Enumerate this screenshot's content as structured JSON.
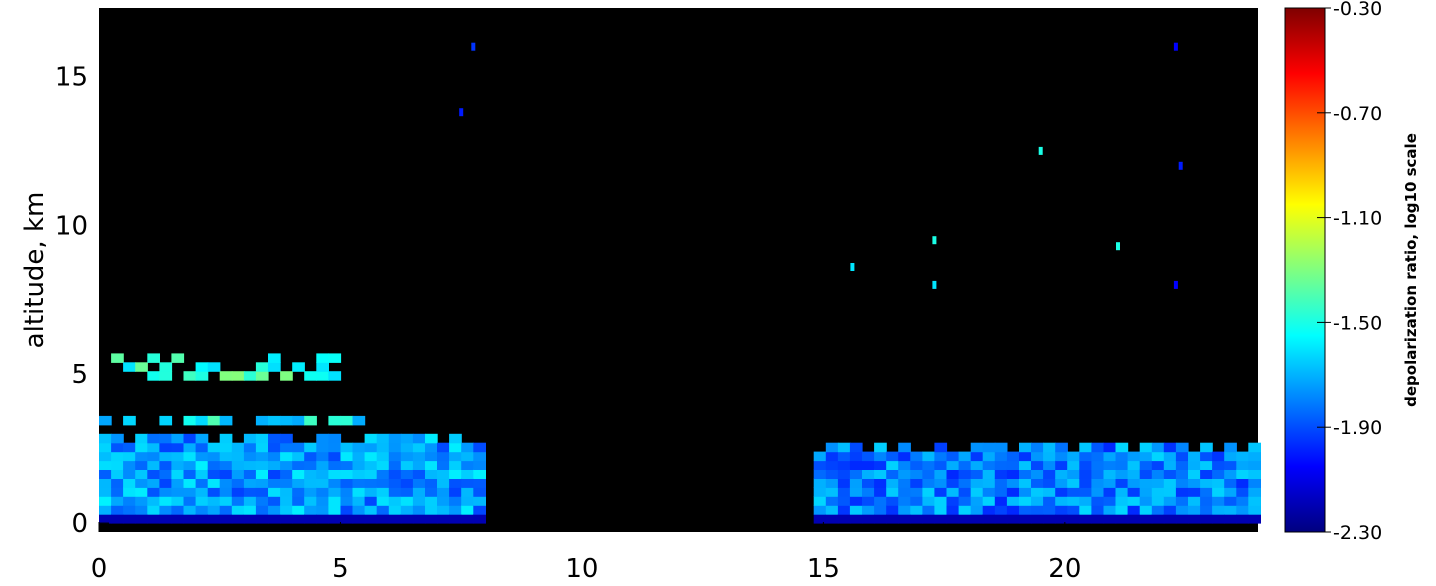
{
  "chart_data": {
    "type": "heatmap",
    "title": "",
    "xlabel": "",
    "ylabel": "altitude, km",
    "xlim": [
      0,
      24
    ],
    "ylim": [
      -0.3,
      17.3
    ],
    "x_ticks": [
      "0",
      "5",
      "10",
      "15",
      "20"
    ],
    "y_ticks": [
      "0",
      "5",
      "10",
      "15"
    ],
    "colorbar": {
      "label": "depolarization ratio, log10 scale",
      "range": [
        -2.3,
        -0.3
      ],
      "ticks": [
        "-0.30",
        "-0.70",
        "-1.10",
        "-1.50",
        "-1.90",
        "-2.30"
      ]
    },
    "background_color": "#000000",
    "colormap": [
      "#00007f",
      "#0000ff",
      "#0080ff",
      "#00ffff",
      "#80ff80",
      "#ffff00",
      "#ff8000",
      "#ff0000",
      "#7f0000"
    ],
    "data_coverage_hours": [
      [
        0,
        8.0
      ],
      [
        14.8,
        24
      ]
    ],
    "regions": [
      {
        "name": "boundary layer",
        "t_start": 0,
        "t_end": 8.0,
        "alt_min": 0,
        "alt_max": 2.9,
        "value": -1.75
      },
      {
        "name": "boundary layer",
        "t_start": 14.8,
        "t_end": 24,
        "alt_min": 0,
        "alt_max": 2.6,
        "value": -1.8
      },
      {
        "name": "aerosol layer",
        "t_start": 0,
        "t_end": 5.5,
        "alt_min": 3.3,
        "alt_max": 3.7,
        "value": -1.55
      },
      {
        "name": "aerosol layer",
        "t_start": 0,
        "t_end": 5.0,
        "alt_min": 4.8,
        "alt_max": 5.5,
        "value": -1.45
      }
    ],
    "cirrus_points": [
      {
        "t": 7.75,
        "alt": 16.0,
        "value": -1.95
      },
      {
        "t": 7.5,
        "alt": 13.8,
        "value": -2.0
      },
      {
        "t": 22.3,
        "alt": 16.0,
        "value": -2.05
      },
      {
        "t": 22.4,
        "alt": 12.0,
        "value": -2.0
      },
      {
        "t": 22.3,
        "alt": 8.0,
        "value": -2.05
      },
      {
        "t": 17.3,
        "alt": 9.5,
        "value": -1.5
      },
      {
        "t": 17.3,
        "alt": 8.0,
        "value": -1.6
      },
      {
        "t": 19.5,
        "alt": 12.5,
        "value": -1.5
      },
      {
        "t": 15.6,
        "alt": 8.6,
        "value": -1.6
      },
      {
        "t": 21.1,
        "alt": 9.3,
        "value": -1.5
      }
    ]
  }
}
